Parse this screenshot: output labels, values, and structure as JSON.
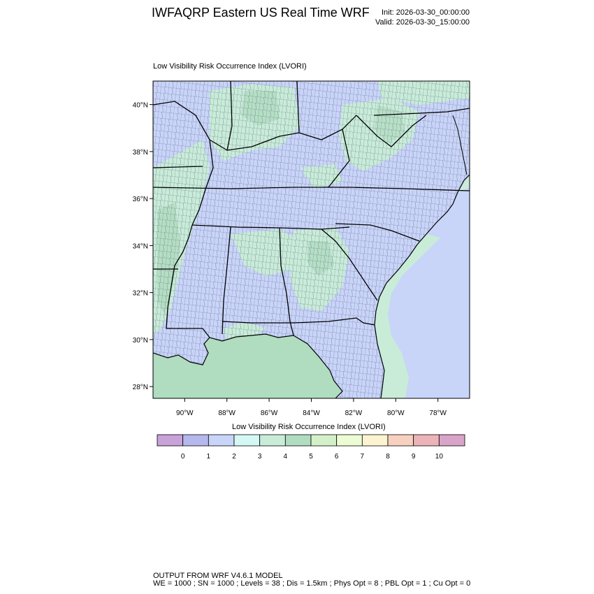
{
  "header": {
    "title": "IWFAQRP Eastern US Real Time WRF",
    "init": "Init: 2026-03-30_00:00:00",
    "valid": "Valid: 2026-03-30_15:00:00"
  },
  "map": {
    "field_title": "Low Visibility Risk Occurrence Index   (LVORI)",
    "lat_labels": [
      "40°N",
      "38°N",
      "36°N",
      "34°N",
      "32°N",
      "30°N",
      "28°N"
    ],
    "lon_labels": [
      "90°W",
      "88°W",
      "86°W",
      "84°W",
      "82°W",
      "80°W",
      "78°W"
    ],
    "extent": {
      "lon_min": -91.5,
      "lon_max": -76.5,
      "lat_min": 27.5,
      "lat_max": 41.0
    }
  },
  "colorbar": {
    "title": "Low Visibility Risk Occurrence Index  (LVORI)",
    "labels": [
      "0",
      "1",
      "2",
      "3",
      "4",
      "5",
      "6",
      "7",
      "8",
      "9",
      "10"
    ],
    "colors": [
      "#c8a2d8",
      "#b4b8ec",
      "#c8d4f8",
      "#d4f8f4",
      "#c8ecd8",
      "#b0dcc0",
      "#d4f0c8",
      "#ecfcd4",
      "#fcf4d0",
      "#f8d0c0",
      "#ecb4b8",
      "#d8a4c8"
    ]
  },
  "colors": {
    "land_low": "#c8d4f8",
    "land_mid": "#c8ecd8",
    "land_high": "#b0dcc0",
    "ocean": "#c8d4f8"
  },
  "footer": {
    "line1": "OUTPUT FROM WRF V4.6.1 MODEL",
    "line2": "WE = 1000 ; SN = 1000 ; Levels = 38 ; Dis = 1.5km ; Phys Opt = 8 ; PBL Opt = 1 ; Cu Opt = 0"
  }
}
